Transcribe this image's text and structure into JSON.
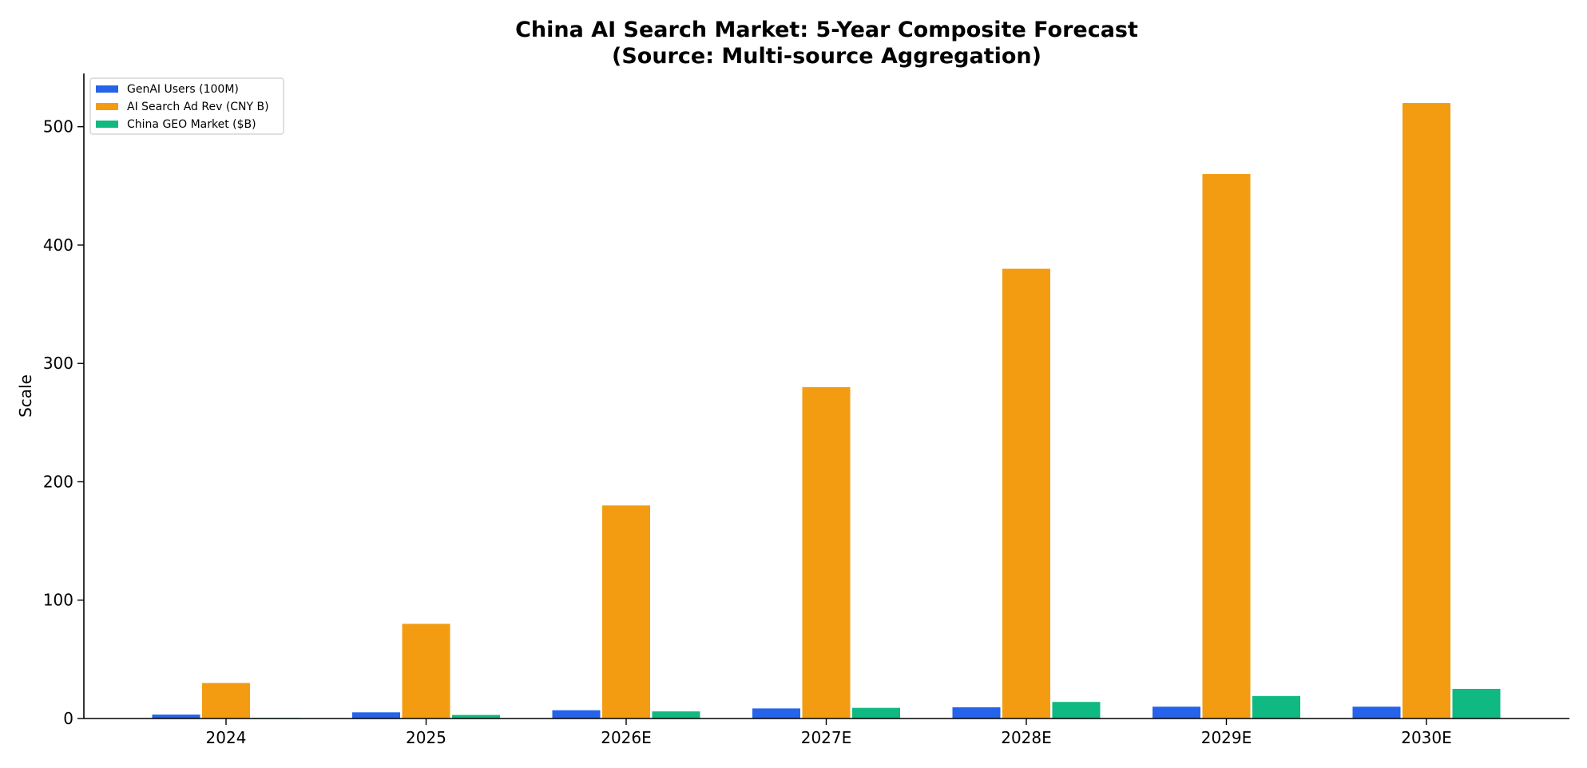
{
  "chart_data": {
    "type": "bar",
    "title": "China AI Search Market: 5-Year Composite Forecast",
    "subtitle": "(Source: Multi-source Aggregation)",
    "xlabel": "",
    "ylabel": "Scale",
    "categories": [
      "2024",
      "2025",
      "2026E",
      "2027E",
      "2028E",
      "2029E",
      "2030E"
    ],
    "series": [
      {
        "name": "GenAI Users (100M)",
        "color": "#2563eb",
        "values": [
          3.3,
          5.2,
          7.0,
          8.5,
          9.5,
          10.0,
          10.0
        ]
      },
      {
        "name": "AI Search Ad Rev (CNY B)",
        "color": "#f39c12",
        "values": [
          30,
          80,
          180,
          280,
          380,
          460,
          520
        ]
      },
      {
        "name": "China GEO Market ($B)",
        "color": "#10b981",
        "values": [
          0.5,
          3,
          6,
          9,
          14,
          19,
          25
        ]
      }
    ],
    "ylim": [
      0,
      545
    ],
    "yticks": [
      "0",
      "100",
      "200",
      "300",
      "400",
      "500"
    ],
    "ytick_values": [
      0,
      100,
      200,
      300,
      400,
      500
    ],
    "grid": false,
    "legend_position": "top-left"
  }
}
